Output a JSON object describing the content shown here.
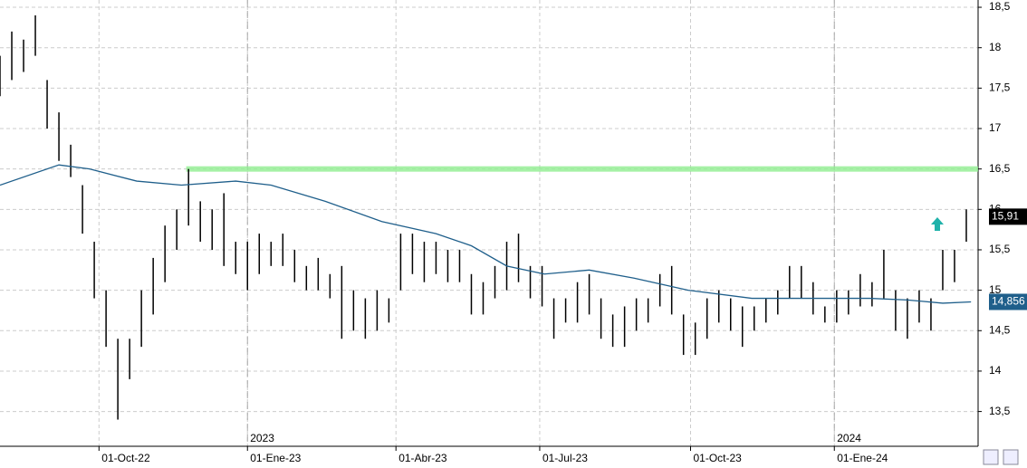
{
  "chart_data": {
    "type": "ohlc",
    "bars": {
      "color": "#000000",
      "x": [
        0,
        5,
        10,
        15,
        20,
        25,
        30,
        35,
        40,
        45,
        50,
        55,
        60,
        65,
        70,
        75,
        80,
        85,
        90,
        95,
        100,
        105,
        110,
        115,
        120,
        125,
        130,
        135,
        140,
        145,
        150,
        155,
        160,
        165,
        170,
        175,
        180,
        185,
        190,
        195,
        200,
        205,
        210,
        215,
        220,
        225,
        230,
        235,
        240,
        245,
        250,
        255,
        260,
        265,
        270,
        275,
        280,
        285,
        290,
        295,
        300,
        305,
        310,
        315,
        320,
        325,
        330,
        335,
        340,
        345,
        350,
        355,
        360,
        365,
        370,
        375,
        380,
        385,
        390,
        395,
        400,
        405,
        410
      ],
      "high": [
        17.9,
        18.2,
        18.1,
        18.4,
        17.6,
        17.2,
        16.8,
        16.3,
        15.6,
        15.0,
        14.4,
        14.4,
        15.0,
        15.4,
        15.8,
        16.0,
        16.5,
        16.1,
        16.0,
        16.2,
        15.6,
        15.6,
        15.7,
        15.6,
        15.7,
        15.5,
        15.3,
        15.4,
        15.2,
        15.3,
        15.0,
        14.9,
        15.0,
        14.9,
        15.7,
        15.7,
        15.6,
        15.6,
        15.5,
        15.5,
        15.2,
        15.1,
        15.3,
        15.6,
        15.7,
        15.3,
        15.3,
        14.9,
        14.9,
        15.1,
        15.2,
        14.9,
        14.7,
        14.8,
        14.9,
        14.9,
        15.2,
        15.3,
        14.7,
        14.6,
        14.9,
        15.0,
        14.9,
        14.8,
        14.8,
        14.9,
        15.0,
        15.3,
        15.3,
        15.1,
        14.8,
        15.0,
        15.0,
        15.2,
        15.1,
        15.5,
        15.0,
        14.9,
        15.0,
        14.9,
        15.5,
        15.5,
        16.0
      ],
      "low": [
        17.4,
        17.6,
        17.7,
        17.9,
        17.0,
        16.6,
        16.4,
        15.7,
        14.9,
        14.3,
        13.4,
        13.9,
        14.3,
        14.7,
        15.1,
        15.5,
        15.8,
        15.6,
        15.5,
        15.3,
        15.2,
        15.0,
        15.2,
        15.3,
        15.3,
        15.1,
        15.0,
        15.0,
        14.9,
        14.4,
        14.5,
        14.4,
        14.5,
        14.6,
        15.0,
        15.2,
        15.1,
        15.2,
        15.1,
        15.1,
        14.7,
        14.7,
        14.9,
        15.0,
        15.1,
        14.9,
        14.8,
        14.4,
        14.6,
        14.6,
        14.7,
        14.4,
        14.3,
        14.3,
        14.5,
        14.6,
        14.8,
        14.7,
        14.2,
        14.2,
        14.4,
        14.6,
        14.5,
        14.3,
        14.5,
        14.6,
        14.7,
        14.9,
        14.9,
        14.7,
        14.6,
        14.6,
        14.7,
        14.8,
        14.8,
        14.9,
        14.5,
        14.4,
        14.6,
        14.5,
        15.0,
        15.1,
        15.6
      ]
    },
    "moving_average": {
      "color": "#1f5f8b",
      "x": [
        0,
        25,
        38,
        58,
        77,
        100,
        115,
        138,
        162,
        185,
        200,
        215,
        231,
        250,
        269,
        292,
        319,
        346,
        369,
        385,
        400,
        412
      ],
      "values": [
        16.3,
        16.55,
        16.5,
        16.35,
        16.3,
        16.35,
        16.3,
        16.1,
        15.85,
        15.7,
        15.55,
        15.3,
        15.2,
        15.25,
        15.15,
        15.0,
        14.9,
        14.9,
        14.9,
        14.88,
        14.84,
        14.856
      ]
    },
    "resistance": {
      "value": 16.5,
      "x": [
        79,
        415
      ],
      "color": "#90ee90"
    },
    "last_price": {
      "value": 15.91,
      "label": "15,91"
    },
    "average_label": {
      "value": 14.856,
      "label": "14,856"
    },
    "year_labels": [
      {
        "value": 105,
        "label": "2023"
      },
      {
        "value": 354,
        "label": "2024"
      }
    ],
    "xlim": [
      0,
      415
    ],
    "xticks": [
      {
        "value": 42,
        "label": "01-Oct-22"
      },
      {
        "value": 105,
        "label": "01-Ene-23"
      },
      {
        "value": 168,
        "label": "01-Abr-23"
      },
      {
        "value": 229,
        "label": "01-Jul-23"
      },
      {
        "value": 293,
        "label": "01-Oct-23"
      },
      {
        "value": 354,
        "label": "01-Ene-24"
      }
    ],
    "ylim": [
      13.07,
      18.59
    ],
    "yticks": [
      {
        "value": 13.5,
        "label": "13,5"
      },
      14,
      {
        "value": 14.5,
        "label": "14,5"
      },
      15,
      {
        "value": 15.5,
        "label": "15,5"
      },
      16,
      {
        "value": 16.5,
        "label": "16,5"
      },
      17,
      {
        "value": 17.5,
        "label": "17,5"
      },
      18,
      {
        "value": 18.5,
        "label": "18,5"
      }
    ],
    "grid": true
  }
}
